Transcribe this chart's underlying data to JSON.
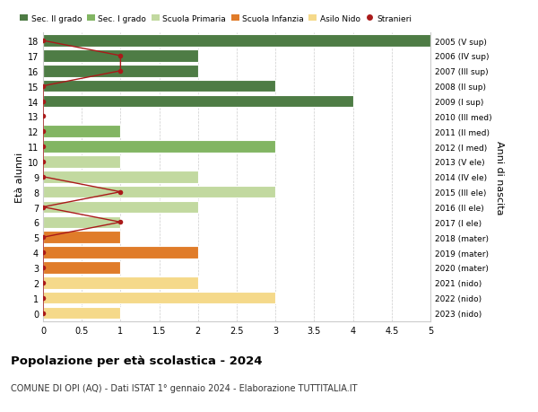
{
  "ages": [
    18,
    17,
    16,
    15,
    14,
    13,
    12,
    11,
    10,
    9,
    8,
    7,
    6,
    5,
    4,
    3,
    2,
    1,
    0
  ],
  "right_labels": [
    "2005 (V sup)",
    "2006 (IV sup)",
    "2007 (III sup)",
    "2008 (II sup)",
    "2009 (I sup)",
    "2010 (III med)",
    "2011 (II med)",
    "2012 (I med)",
    "2013 (V ele)",
    "2014 (IV ele)",
    "2015 (III ele)",
    "2016 (II ele)",
    "2017 (I ele)",
    "2018 (mater)",
    "2019 (mater)",
    "2020 (mater)",
    "2021 (nido)",
    "2022 (nido)",
    "2023 (nido)"
  ],
  "bar_values": [
    5,
    2,
    2,
    3,
    4,
    0,
    1,
    3,
    1,
    2,
    3,
    2,
    1,
    1,
    2,
    1,
    2,
    3,
    1
  ],
  "bar_colors": [
    "#4e7c45",
    "#4e7c45",
    "#4e7c45",
    "#4e7c45",
    "#4e7c45",
    "#82b563",
    "#82b563",
    "#82b563",
    "#c2d9a0",
    "#c2d9a0",
    "#c2d9a0",
    "#c2d9a0",
    "#c2d9a0",
    "#e07c2a",
    "#e07c2a",
    "#e07c2a",
    "#f5d98a",
    "#f5d98a",
    "#f5d98a"
  ],
  "stranieri_x": [
    0,
    1,
    1,
    0,
    0,
    0,
    0,
    0,
    0,
    0,
    1,
    0,
    1,
    0,
    0,
    0,
    0,
    0,
    0
  ],
  "stranieri_ages": [
    18,
    17,
    16,
    15,
    14,
    13,
    12,
    11,
    10,
    9,
    8,
    7,
    6,
    5,
    4,
    3,
    2,
    1,
    0
  ],
  "colors": {
    "sec2": "#4e7c45",
    "sec1": "#82b563",
    "primaria": "#c2d9a0",
    "infanzia": "#e07c2a",
    "nido": "#f5d98a",
    "stranieri": "#aa1a1a"
  },
  "legend_labels": [
    "Sec. II grado",
    "Sec. I grado",
    "Scuola Primaria",
    "Scuola Infanzia",
    "Asilo Nido",
    "Stranieri"
  ],
  "legend_colors": [
    "#4e7c45",
    "#82b563",
    "#c2d9a0",
    "#e07c2a",
    "#f5d98a",
    "#aa1a1a"
  ],
  "title": "Popolazione per età scolastica - 2024",
  "subtitle": "COMUNE DI OPI (AQ) - Dati ISTAT 1° gennaio 2024 - Elaborazione TUTTITALIA.IT",
  "ylabel_left": "Età alunni",
  "ylabel_right": "Anni di nascita",
  "xlim": [
    0,
    5.0
  ],
  "xticks": [
    0,
    0.5,
    1.0,
    1.5,
    2.0,
    2.5,
    3.0,
    3.5,
    4.0,
    4.5,
    5.0
  ],
  "bg_color": "#ffffff",
  "grid_color": "#cccccc"
}
